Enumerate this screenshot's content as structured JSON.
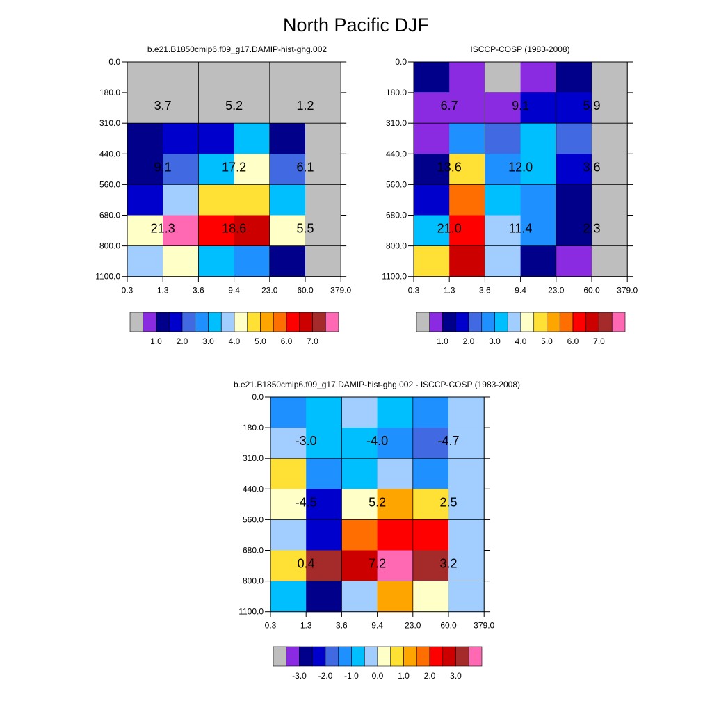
{
  "figure_title": "North Pacific DJF",
  "chart_data": [
    {
      "type": "heatmap",
      "title": "b.e21.B1850cmip6.f09_g17.DAMIP-hist-ghg.002",
      "x_ticks": [
        "0.3",
        "1.3",
        "3.6",
        "9.4",
        "23.0",
        "60.0",
        "379.0"
      ],
      "y_ticks": [
        "0.0",
        "180.0",
        "310.0",
        "440.0",
        "560.0",
        "680.0",
        "800.0",
        "1100.0"
      ],
      "cell_colors": [
        [
          "#BEBEBE",
          "#BEBEBE",
          "#BEBEBE",
          "#BEBEBE",
          "#BEBEBE",
          "#BEBEBE"
        ],
        [
          "#BEBEBE",
          "#BEBEBE",
          "#BEBEBE",
          "#BEBEBE",
          "#BEBEBE",
          "#BEBEBE"
        ],
        [
          "#00008B",
          "#0000CD",
          "#0000CD",
          "#00BFFF",
          "#00008B",
          "#BEBEBE"
        ],
        [
          "#00008B",
          "#4169E1",
          "#00BFFF",
          "#FFFFC8",
          "#4169E1",
          "#BEBEBE"
        ],
        [
          "#0000CD",
          "#A2CDFF",
          "#FFE135",
          "#FFE135",
          "#00BFFF",
          "#BEBEBE"
        ],
        [
          "#FFFFC8",
          "#FF69B4",
          "#FF0000",
          "#CD0000",
          "#FFFFC8",
          "#BEBEBE"
        ],
        [
          "#A2CDFF",
          "#FFFFC8",
          "#00BFFF",
          "#1E90FF",
          "#00008B",
          "#BEBEBE"
        ]
      ],
      "block_values": [
        [
          "3.7",
          "5.2",
          "1.2"
        ],
        [
          "9.1",
          "17.2",
          "6.1"
        ],
        [
          "21.3",
          "18.6",
          "5.5"
        ]
      ],
      "colorbar": {
        "colors": [
          "#BEBEBE",
          "#8A2BE2",
          "#00008B",
          "#0000CD",
          "#4169E1",
          "#1E90FF",
          "#00BFFF",
          "#A2CDFF",
          "#FFFFC8",
          "#FFE135",
          "#FFA500",
          "#FF6E00",
          "#FF0000",
          "#CD0000",
          "#A52A2A",
          "#FF69B4"
        ],
        "labels": [
          "1.0",
          "2.0",
          "3.0",
          "4.0",
          "5.0",
          "6.0",
          "7.0"
        ]
      }
    },
    {
      "type": "heatmap",
      "title": "ISCCP-COSP (1983-2008)",
      "x_ticks": [
        "0.3",
        "1.3",
        "3.6",
        "9.4",
        "23.0",
        "60.0",
        "379.0"
      ],
      "y_ticks": [
        "0.0",
        "180.0",
        "310.0",
        "440.0",
        "560.0",
        "680.0",
        "800.0",
        "1100.0"
      ],
      "cell_colors": [
        [
          "#00008B",
          "#8A2BE2",
          "#BEBEBE",
          "#8A2BE2",
          "#00008B",
          "#BEBEBE"
        ],
        [
          "#8A2BE2",
          "#8A2BE2",
          "#8A2BE2",
          "#0000CD",
          "#0000CD",
          "#BEBEBE"
        ],
        [
          "#8A2BE2",
          "#1E90FF",
          "#4169E1",
          "#00BFFF",
          "#4169E1",
          "#BEBEBE"
        ],
        [
          "#00008B",
          "#FFE135",
          "#1E90FF",
          "#00BFFF",
          "#0000CD",
          "#BEBEBE"
        ],
        [
          "#0000CD",
          "#FF6E00",
          "#00BFFF",
          "#1E90FF",
          "#00008B",
          "#BEBEBE"
        ],
        [
          "#00BFFF",
          "#FF0000",
          "#A2CDFF",
          "#1E90FF",
          "#00008B",
          "#BEBEBE"
        ],
        [
          "#FFE135",
          "#CD0000",
          "#A2CDFF",
          "#00008B",
          "#8A2BE2",
          "#BEBEBE"
        ]
      ],
      "block_values": [
        [
          "6.7",
          "9.1",
          "5.9"
        ],
        [
          "13.6",
          "12.0",
          "3.6"
        ],
        [
          "21.0",
          "11.4",
          "2.3"
        ]
      ],
      "colorbar": {
        "colors": [
          "#BEBEBE",
          "#8A2BE2",
          "#00008B",
          "#0000CD",
          "#4169E1",
          "#1E90FF",
          "#00BFFF",
          "#A2CDFF",
          "#FFFFC8",
          "#FFE135",
          "#FFA500",
          "#FF6E00",
          "#FF0000",
          "#CD0000",
          "#A52A2A",
          "#FF69B4"
        ],
        "labels": [
          "1.0",
          "2.0",
          "3.0",
          "4.0",
          "5.0",
          "6.0",
          "7.0"
        ]
      }
    },
    {
      "type": "heatmap",
      "title": "b.e21.B1850cmip6.f09_g17.DAMIP-hist-ghg.002 - ISCCP-COSP (1983-2008)",
      "x_ticks": [
        "0.3",
        "1.3",
        "3.6",
        "9.4",
        "23.0",
        "60.0",
        "379.0"
      ],
      "y_ticks": [
        "0.0",
        "180.0",
        "310.0",
        "440.0",
        "560.0",
        "680.0",
        "800.0",
        "1100.0"
      ],
      "cell_colors": [
        [
          "#1E90FF",
          "#00BFFF",
          "#A2CDFF",
          "#00BFFF",
          "#1E90FF",
          "#A2CDFF"
        ],
        [
          "#A2CDFF",
          "#00BFFF",
          "#00BFFF",
          "#1E90FF",
          "#4169E1",
          "#A2CDFF"
        ],
        [
          "#FFE135",
          "#1E90FF",
          "#00BFFF",
          "#A2CDFF",
          "#1E90FF",
          "#A2CDFF"
        ],
        [
          "#FFFFC8",
          "#0000CD",
          "#FFFFC8",
          "#FFA500",
          "#FFE135",
          "#A2CDFF"
        ],
        [
          "#A2CDFF",
          "#0000CD",
          "#FF6E00",
          "#FF0000",
          "#FF0000",
          "#A2CDFF"
        ],
        [
          "#FFE135",
          "#A52A2A",
          "#CD0000",
          "#FF69B4",
          "#A52A2A",
          "#A2CDFF"
        ],
        [
          "#00BFFF",
          "#00008B",
          "#A2CDFF",
          "#FFA500",
          "#FFFFC8",
          "#A2CDFF"
        ]
      ],
      "block_values": [
        [
          "-3.0",
          "-4.0",
          "-4.7"
        ],
        [
          "-4.5",
          "5.2",
          "2.5"
        ],
        [
          "0.4",
          "7.2",
          "3.2"
        ]
      ],
      "colorbar": {
        "colors": [
          "#BEBEBE",
          "#8A2BE2",
          "#00008B",
          "#0000CD",
          "#4169E1",
          "#1E90FF",
          "#00BFFF",
          "#A2CDFF",
          "#FFFFC8",
          "#FFE135",
          "#FFA500",
          "#FF6E00",
          "#FF0000",
          "#CD0000",
          "#A52A2A",
          "#FF69B4"
        ],
        "labels": [
          "-3.0",
          "-2.0",
          "-1.0",
          "0.0",
          "1.0",
          "2.0",
          "3.0"
        ]
      }
    }
  ]
}
